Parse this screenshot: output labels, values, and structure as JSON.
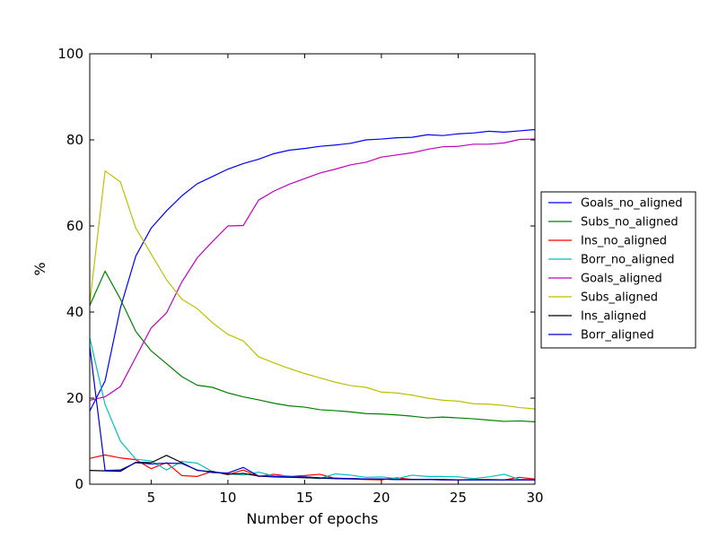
{
  "chart_data": {
    "type": "line",
    "title": "",
    "xlabel": "Number of epochs",
    "ylabel": "%",
    "xlim": [
      1,
      30
    ],
    "ylim": [
      0,
      100
    ],
    "x_ticks": [
      5,
      10,
      15,
      20,
      25,
      30
    ],
    "y_ticks": [
      0,
      20,
      40,
      60,
      80,
      100
    ],
    "grid": false,
    "legend_position": "right-outside",
    "x": [
      1,
      2,
      3,
      4,
      5,
      6,
      7,
      8,
      9,
      10,
      11,
      12,
      13,
      14,
      15,
      16,
      17,
      18,
      19,
      20,
      21,
      22,
      23,
      24,
      25,
      26,
      27,
      28,
      29,
      30
    ],
    "series": [
      {
        "name": "Goals_no_aligned",
        "color": "#0000ff",
        "values": [
          17,
          24,
          41,
          53,
          59.5,
          63.5,
          67,
          69.8,
          71.5,
          73.2,
          74.5,
          75.5,
          76.8,
          77.6,
          78,
          78.5,
          78.8,
          79.2,
          80,
          80.2,
          80.5,
          80.6,
          81.2,
          81,
          81.4,
          81.6,
          82,
          81.8,
          82.1,
          82.4
        ]
      },
      {
        "name": "Subs_no_aligned",
        "color": "#008000",
        "values": [
          41.5,
          49.5,
          43,
          35.5,
          31,
          28,
          25,
          23,
          22.5,
          21.2,
          20.3,
          19.6,
          18.8,
          18.2,
          17.9,
          17.3,
          17.1,
          16.8,
          16.4,
          16.3,
          16.1,
          15.8,
          15.4,
          15.6,
          15.4,
          15.2,
          14.9,
          14.6,
          14.7,
          14.5
        ]
      },
      {
        "name": "Ins_no_aligned",
        "color": "#ff0000",
        "values": [
          6,
          6.8,
          6.1,
          5.7,
          3.6,
          5,
          2,
          1.8,
          3,
          2.2,
          3.3,
          1.8,
          2.3,
          1.8,
          2,
          2.3,
          1.3,
          1.2,
          1.1,
          1,
          1.5,
          1.1,
          1.1,
          1,
          1,
          1.1,
          1.1,
          1,
          1.6,
          1.2
        ]
      },
      {
        "name": "Borr_no_aligned",
        "color": "#00bfbf",
        "values": [
          34,
          18.5,
          10,
          5.8,
          5.4,
          3.3,
          5.3,
          4.9,
          2.9,
          2.5,
          2.1,
          2.8,
          1.9,
          1.9,
          1.6,
          1.3,
          2.4,
          2.1,
          1.6,
          1.7,
          1.3,
          2.1,
          1.8,
          1.8,
          1.7,
          1.3,
          1.7,
          2.3,
          1.1,
          1.1
        ]
      },
      {
        "name": "Goals_aligned",
        "color": "#bf00bf",
        "values": [
          19.5,
          20.3,
          22.7,
          29.5,
          36.3,
          39.8,
          47,
          52.6,
          56.4,
          60,
          60.1,
          66,
          68.1,
          69.7,
          71,
          72.3,
          73.2,
          74.2,
          74.8,
          76,
          76.5,
          77,
          77.8,
          78.4,
          78.5,
          79,
          79,
          79.3,
          80.1,
          80.2
        ]
      },
      {
        "name": "Subs_aligned",
        "color": "#bfbf00",
        "values": [
          42,
          72.8,
          70.2,
          59.5,
          53.5,
          47.5,
          43,
          40.8,
          37.5,
          34.8,
          33.3,
          29.6,
          28.2,
          26.9,
          25.7,
          24.7,
          23.7,
          22.9,
          22.5,
          21.4,
          21.2,
          20.7,
          20,
          19.5,
          19.3,
          18.7,
          18.6,
          18.3,
          17.8,
          17.5
        ]
      },
      {
        "name": "Ins_aligned",
        "color": "#000000",
        "values": [
          3.2,
          3.1,
          3,
          5.1,
          5,
          6.7,
          5,
          3.2,
          2.9,
          2.3,
          2.5,
          1.9,
          1.7,
          1.6,
          1.5,
          1.4,
          1.3,
          1.3,
          1.2,
          1.2,
          1.1,
          1.1,
          1.1,
          1.1,
          1,
          1,
          1,
          1,
          1,
          1
        ]
      },
      {
        "name": "Borr_aligned",
        "color": "#0000cc",
        "values": [
          32,
          3.2,
          3.3,
          5,
          4.7,
          4.9,
          4.8,
          3.3,
          2.7,
          2.6,
          3.9,
          1.9,
          1.8,
          1.7,
          1.7,
          1.5,
          1.4,
          1.3,
          1.2,
          1.2,
          1.1,
          1.1,
          1.1,
          1,
          1,
          1,
          1,
          1,
          1,
          1
        ]
      }
    ]
  }
}
